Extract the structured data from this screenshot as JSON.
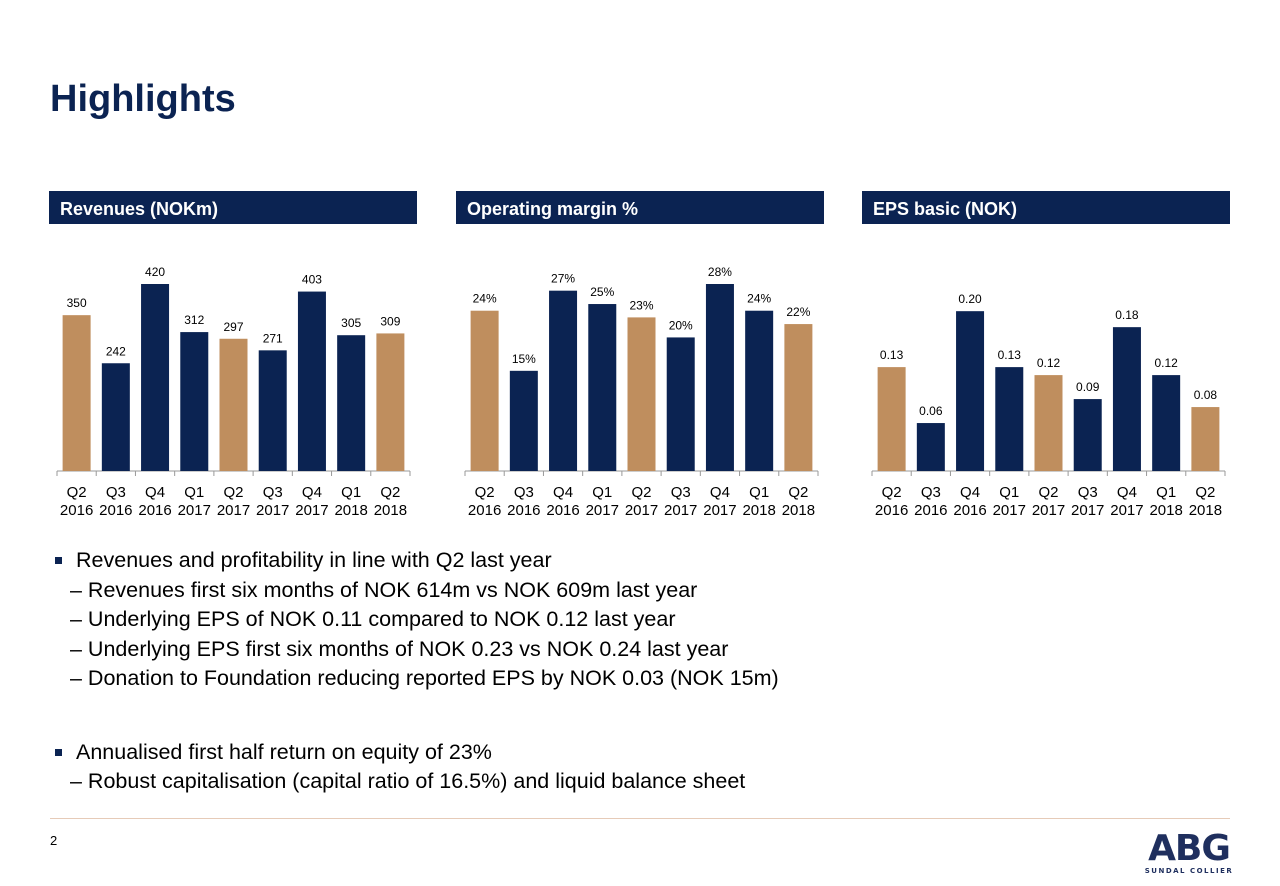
{
  "title": "Highlights",
  "colors": {
    "navy": "#0b2352",
    "tan": "#bf8e5e",
    "rule": "#e6cbb8"
  },
  "chart_data": [
    {
      "type": "bar",
      "title": "Revenues (NOKm)",
      "categories": [
        "Q2 2016",
        "Q3 2016",
        "Q4 2016",
        "Q1 2017",
        "Q2 2017",
        "Q3 2017",
        "Q4 2017",
        "Q1 2018",
        "Q2 2018"
      ],
      "values": [
        350,
        242,
        420,
        312,
        297,
        271,
        403,
        305,
        309
      ],
      "labels": [
        "350",
        "242",
        "420",
        "312",
        "297",
        "271",
        "403",
        "305",
        "309"
      ],
      "ylim": [
        0,
        420
      ],
      "highlight_indices": [
        0,
        4,
        8
      ],
      "grid": false
    },
    {
      "type": "bar",
      "title": "Operating margin %",
      "categories": [
        "Q2 2016",
        "Q3 2016",
        "Q4 2016",
        "Q1 2017",
        "Q2 2017",
        "Q3 2017",
        "Q4 2017",
        "Q1 2018",
        "Q2 2018"
      ],
      "values": [
        24,
        15,
        27,
        25,
        23,
        20,
        28,
        24,
        22
      ],
      "labels": [
        "24%",
        "15%",
        "27%",
        "25%",
        "23%",
        "20%",
        "28%",
        "24%",
        "22%"
      ],
      "ylim": [
        0,
        28
      ],
      "highlight_indices": [
        0,
        4,
        8
      ],
      "grid": false
    },
    {
      "type": "bar",
      "title": "EPS basic (NOK)",
      "categories": [
        "Q2 2016",
        "Q3 2016",
        "Q4 2016",
        "Q1 2017",
        "Q2 2017",
        "Q3 2017",
        "Q4 2017",
        "Q1 2018",
        "Q2 2018"
      ],
      "values": [
        0.13,
        0.06,
        0.2,
        0.13,
        0.12,
        0.09,
        0.18,
        0.12,
        0.08
      ],
      "labels": [
        "0.13",
        "0.06",
        "0.20",
        "0.13",
        "0.12",
        "0.09",
        "0.18",
        "0.12",
        "0.08"
      ],
      "ylim": [
        0,
        0.234
      ],
      "highlight_indices": [
        0,
        4,
        8
      ],
      "grid": false
    }
  ],
  "bullets": [
    {
      "text": "Revenues and profitability in line with Q2 last year",
      "subs": [
        "– Revenues first six months of NOK 614m vs NOK 609m last year",
        "– Underlying EPS of NOK 0.11 compared to NOK 0.12 last year",
        "– Underlying EPS first six months of NOK 0.23 vs NOK 0.24 last year",
        "– Donation to Foundation reducing reported EPS by NOK 0.03 (NOK 15m)"
      ]
    },
    {
      "text": "Annualised first half return on equity of 23%",
      "subs": [
        "– Robust capitalisation (capital ratio of 16.5%) and liquid balance sheet"
      ]
    }
  ],
  "footer": {
    "page": "2",
    "logo_main": "ABG",
    "logo_sub": "SUNDAL COLLIER"
  }
}
